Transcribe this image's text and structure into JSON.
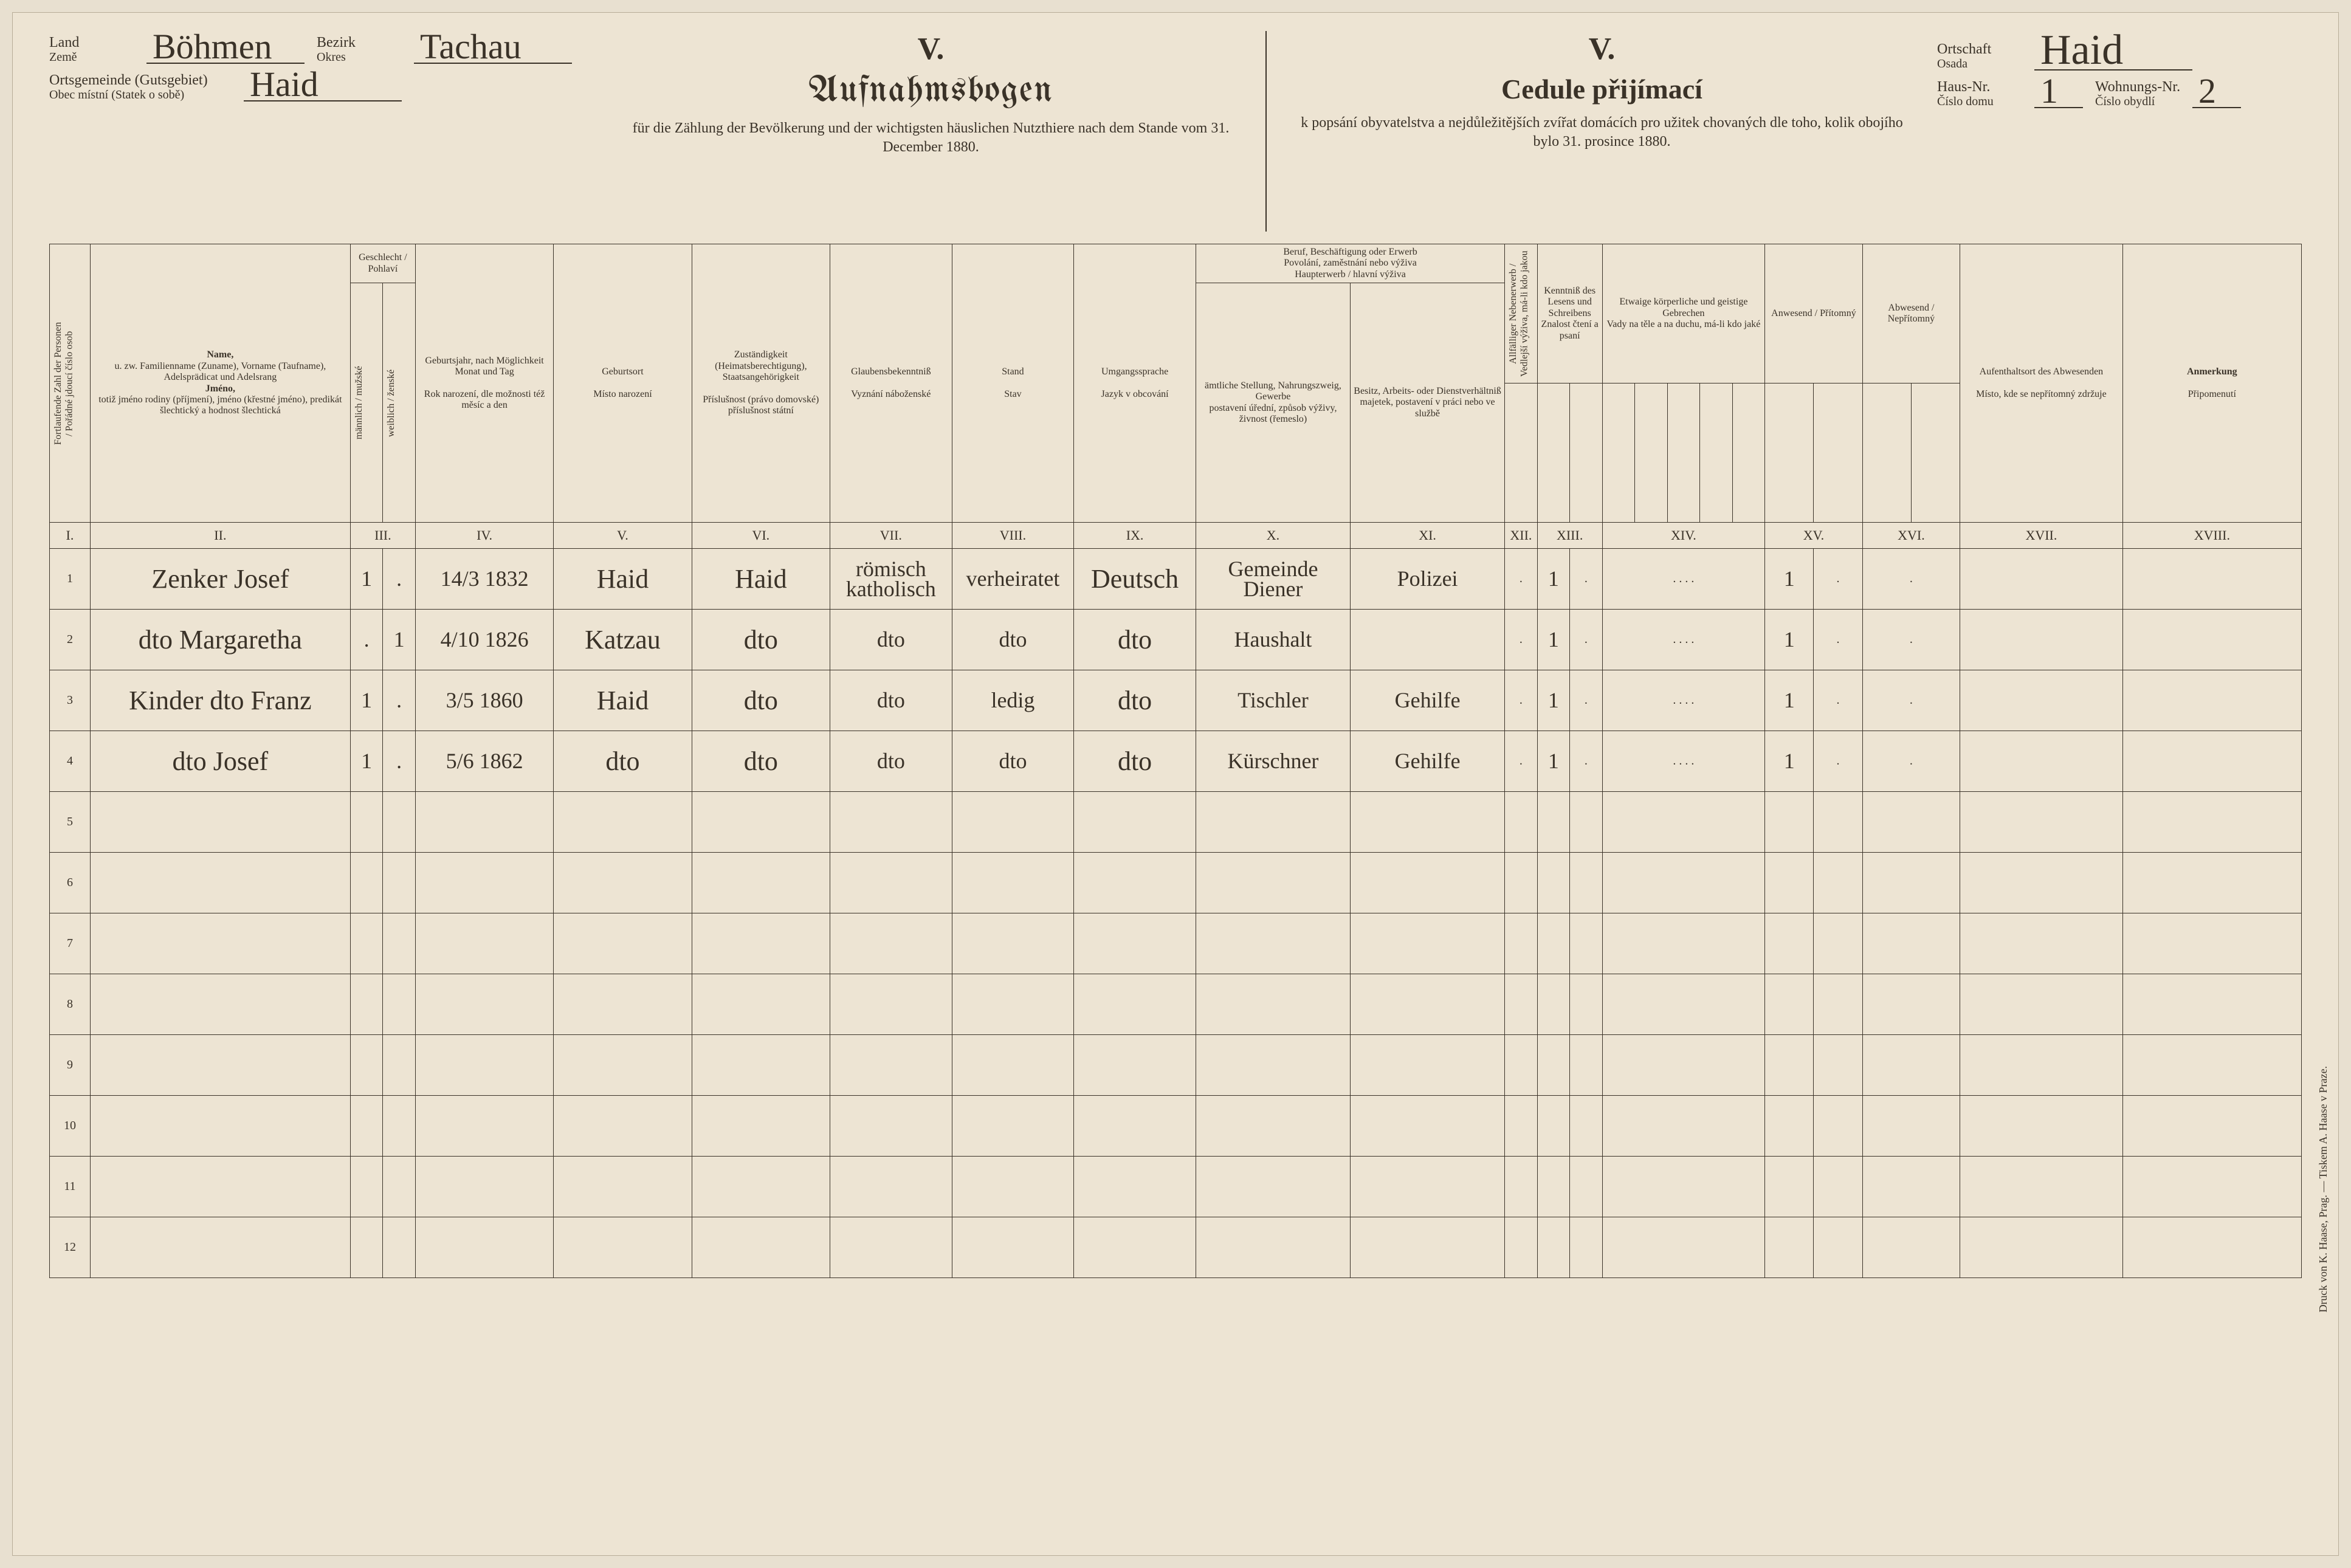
{
  "header": {
    "land_label": "Land",
    "land_label_cz": "Země",
    "land_value": "Böhmen",
    "bezirk_label": "Bezirk",
    "bezirk_label_cz": "Okres",
    "bezirk_value": "Tachau",
    "gemeinde_label": "Ortsgemeinde (Gutsgebiet)",
    "gemeinde_label_cz": "Obec místní (Statek o sobě)",
    "gemeinde_value": "Haid",
    "ortschaft_label": "Ortschaft",
    "ortschaft_label_cz": "Osada",
    "ortschaft_value": "Haid",
    "hausnr_label": "Haus-Nr.",
    "hausnr_label_cz": "Číslo domu",
    "hausnr_value": "1",
    "wohnnr_label": "Wohnungs-Nr.",
    "wohnnr_label_cz": "Číslo obydlí",
    "wohnnr_value": "2",
    "roman": "V.",
    "title_de": "Aufnahmsbogen",
    "title_cz": "Cedule přijímací",
    "subtitle_de": "für die Zählung der Bevölkerung und der wichtigsten häuslichen Nutzthiere nach dem Stande vom 31. December 1880.",
    "subtitle_cz": "k popsání obyvatelstva a nejdůležitějších zvířat domácích pro užitek chovaných dle toho, kolik obojího bylo 31. prosince 1880."
  },
  "columns": {
    "c1": "Fortlaufende Zahl der Personen / Pořádné jdoucí číslo osob",
    "c2_top": "Name,",
    "c2_de": "u. zw. Familienname (Zuname), Vorname (Taufname), Adelsprädicat und Adelsrang",
    "c2_cz_top": "Jméno,",
    "c2_cz": "totiž jméno rodiny (příjmení), jméno (křestné jméno), predikát šlechtický a hodnost šlechtická",
    "c3_top": "Geschlecht / Pohlaví",
    "c3a": "männlich / mužské",
    "c3b": "weiblich / ženské",
    "c4_de": "Geburtsjahr, nach Möglichkeit Monat und Tag",
    "c4_cz": "Rok narození, dle možnosti též měsíc a den",
    "c5_de": "Geburtsort",
    "c5_cz": "Místo narození",
    "c6_de": "Zuständigkeit (Heimatsberechtigung), Staatsangehörigkeit",
    "c6_cz": "Příslušnost (právo domovské) příslušnost státní",
    "c7_de": "Glaubensbekenntniß",
    "c7_cz": "Vyznání náboženské",
    "c8_de": "Stand",
    "c8_cz": "Stav",
    "c9_de": "Umgangssprache",
    "c9_cz": "Jazyk v obcování",
    "c1011_top_de": "Beruf, Beschäftigung oder Erwerb",
    "c1011_top_cz": "Povolání, zaměstnání nebo výživa",
    "c1011_mid_de": "Haupterwerb",
    "c1011_mid_cz": "hlavní výživa",
    "c10_de": "ämtliche Stellung, Nahrungszweig, Gewerbe",
    "c10_cz": "postavení úřední, způsob výživy, živnost (řemeslo)",
    "c11_de": "Besitz, Arbeits- oder Dienstverhältniß",
    "c11_cz": "majetek, postavení v práci nebo ve službě",
    "c12_top_de": "Allfälliger Nebenerwerb",
    "c12_top_cz": "Vedlejší výživa, má-li kdo jakou",
    "c13_top_de": "Kenntniß des Lesens und Schreibens",
    "c13_top_cz": "Znalost čtení a psaní",
    "c14_top_de": "Etwaige körperliche und geistige Gebrechen",
    "c14_top_cz": "Vady na těle a na duchu, má-li kdo jaké",
    "c15_de": "Anwesend / Přítomný",
    "c16_de": "Abwesend / Nepřítomný",
    "c17_de": "Aufenthaltsort des Abwesenden",
    "c17_cz": "Místo, kde se nepřítomný zdržuje",
    "c18_de": "Anmerkung",
    "c18_cz": "Připomenutí"
  },
  "roman_row": [
    "I.",
    "II.",
    "III.",
    "IV.",
    "V.",
    "VI.",
    "VII.",
    "VIII.",
    "IX.",
    "X.",
    "XI.",
    "XII.",
    "XIII.",
    "XIV.",
    "XV.",
    "XVI.",
    "XVII.",
    "XVIII."
  ],
  "rows": [
    {
      "n": "1",
      "name": "Zenker Josef",
      "m": "1",
      "f": ".",
      "birth": "14/3 1832",
      "place": "Haid",
      "citiz": "Haid",
      "relig": "römisch katholisch",
      "status": "verheiratet",
      "lang": "Deutsch",
      "occ1": "Gemeinde Diener",
      "occ2": "Polizei",
      "c12": ".",
      "c13a": "1",
      "c13b": ".",
      "c14": ". . . .",
      "c15a": "1",
      "c15b": ".",
      "c16": ".",
      "absloc": "",
      "note": ""
    },
    {
      "n": "2",
      "name": "dto Margaretha",
      "m": ".",
      "f": "1",
      "birth": "4/10 1826",
      "place": "Katzau",
      "citiz": "dto",
      "relig": "dto",
      "status": "dto",
      "lang": "dto",
      "occ1": "Haushalt",
      "occ2": "",
      "c12": ".",
      "c13a": "1",
      "c13b": ".",
      "c14": ". . . .",
      "c15a": "1",
      "c15b": ".",
      "c16": ".",
      "absloc": "",
      "note": ""
    },
    {
      "n": "3",
      "name": "Kinder dto Franz",
      "m": "1",
      "f": ".",
      "birth": "3/5 1860",
      "place": "Haid",
      "citiz": "dto",
      "relig": "dto",
      "status": "ledig",
      "lang": "dto",
      "occ1": "Tischler",
      "occ2": "Gehilfe",
      "c12": ".",
      "c13a": "1",
      "c13b": ".",
      "c14": ". . . .",
      "c15a": "1",
      "c15b": ".",
      "c16": ".",
      "absloc": "",
      "note": ""
    },
    {
      "n": "4",
      "name": "dto Josef",
      "m": "1",
      "f": ".",
      "birth": "5/6 1862",
      "place": "dto",
      "citiz": "dto",
      "relig": "dto",
      "status": "dto",
      "lang": "dto",
      "occ1": "Kürschner",
      "occ2": "Gehilfe",
      "c12": ".",
      "c13a": "1",
      "c13b": ".",
      "c14": ". . . .",
      "c15a": "1",
      "c15b": ".",
      "c16": ".",
      "absloc": "",
      "note": ""
    },
    {
      "n": "5"
    },
    {
      "n": "6"
    },
    {
      "n": "7"
    },
    {
      "n": "8"
    },
    {
      "n": "9"
    },
    {
      "n": "10"
    },
    {
      "n": "11"
    },
    {
      "n": "12"
    }
  ],
  "printer": "Druck von K. Haase, Prag. — Tiskem A. Haase v Praze."
}
